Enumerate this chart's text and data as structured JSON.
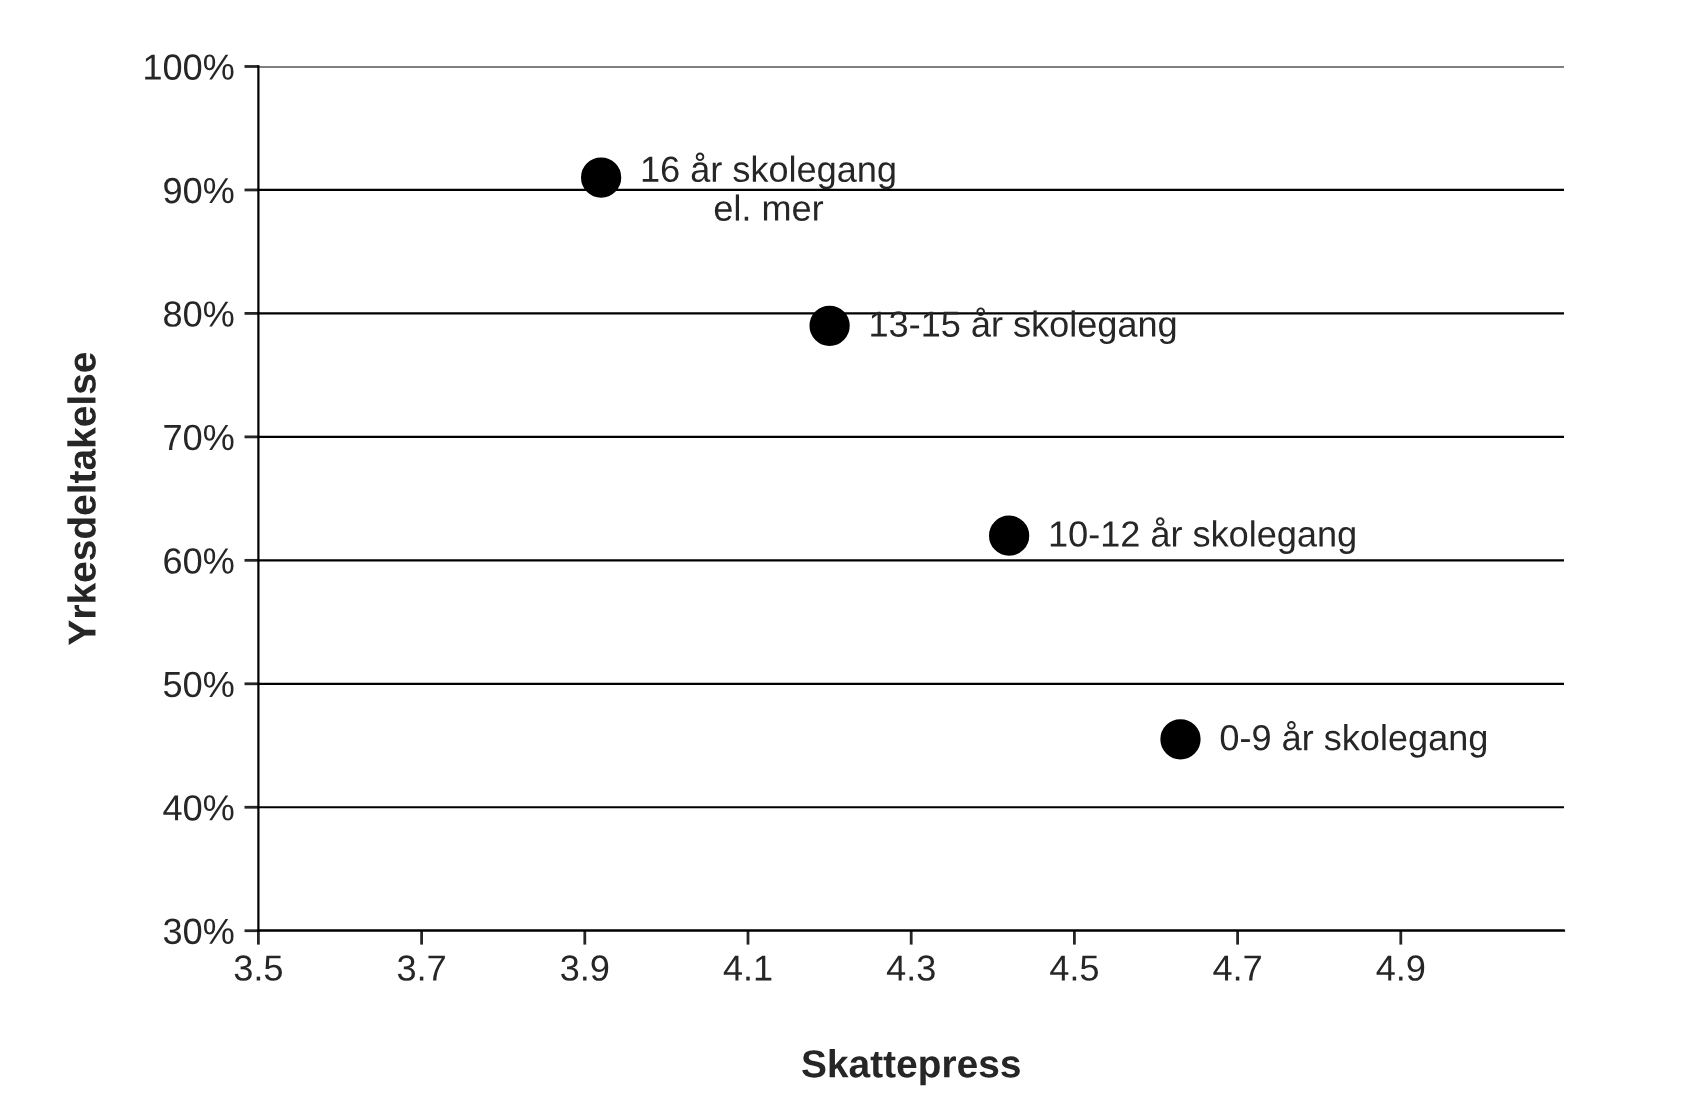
{
  "chart_data": {
    "type": "scatter",
    "xlabel": "Skattepress",
    "ylabel": "Yrkesdeltakelse",
    "x": [
      3.92,
      4.2,
      4.42,
      4.63
    ],
    "series": [
      {
        "color": "#000000",
        "values": [
          91,
          79,
          62,
          45.5
        ]
      }
    ],
    "xlim": [
      3.5,
      5.1
    ],
    "xticks": [
      3.5,
      3.7,
      3.9,
      4.1,
      4.3,
      4.5,
      4.7,
      4.9
    ],
    "ylim": [
      30,
      100
    ],
    "yticks": [
      {
        "value": 30,
        "label": "30%"
      },
      {
        "value": 40,
        "label": "40%"
      },
      {
        "value": 50,
        "label": "50%"
      },
      {
        "value": 60,
        "label": "60%"
      },
      {
        "value": 70,
        "label": "70%"
      },
      {
        "value": 80,
        "label": "80%"
      },
      {
        "value": 90,
        "label": "90%"
      },
      {
        "value": 100,
        "label": "100%"
      }
    ],
    "grid": "y",
    "marker": "circle",
    "legend": false,
    "annotations": [
      {
        "text": "16 år skolegang\nel. mer",
        "x": 3.92,
        "y": 91
      },
      {
        "text": "13-15 år skolegang",
        "x": 4.2,
        "y": 79
      },
      {
        "text": "10-12 år skolegang",
        "x": 4.42,
        "y": 62
      },
      {
        "text": "0-9 år skolegang",
        "x": 4.63,
        "y": 45.5
      }
    ]
  }
}
